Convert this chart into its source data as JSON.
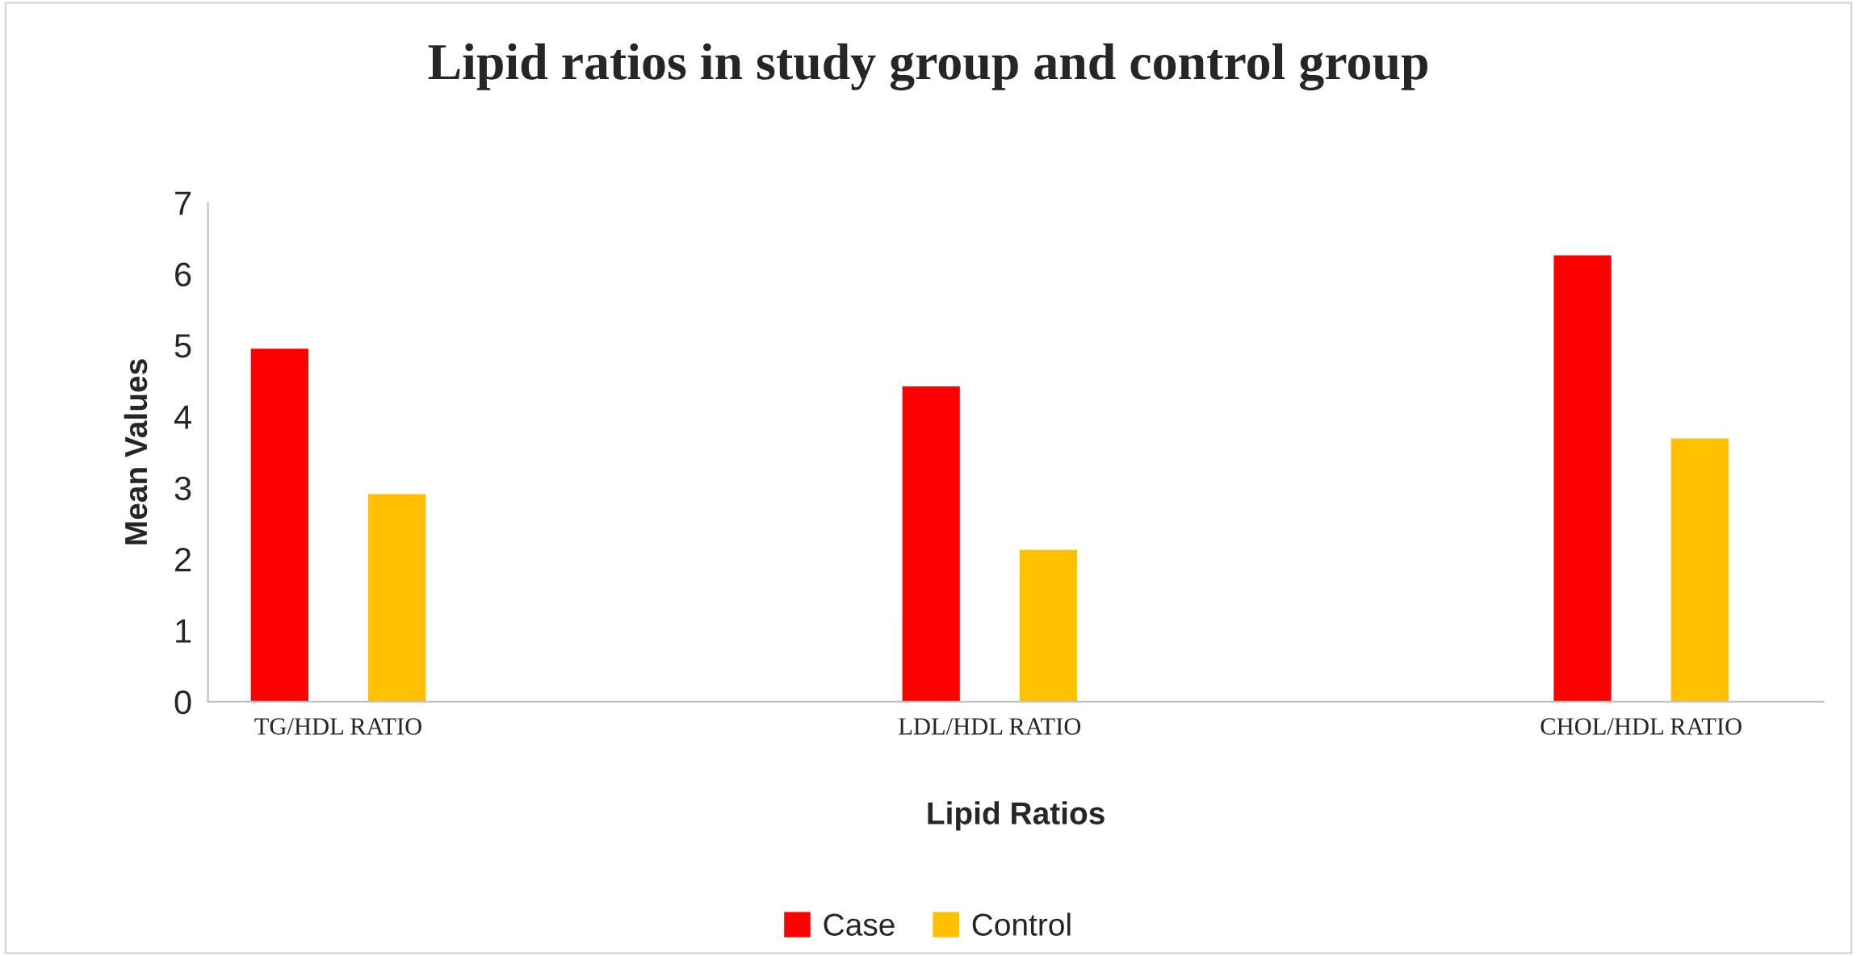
{
  "chart_data": {
    "type": "bar",
    "title": "Lipid ratios in study group and control group",
    "xlabel": "Lipid Ratios",
    "ylabel": "Mean Values",
    "categories": [
      "TG/HDL RATIO",
      "LDL/HDL RATIO",
      "CHOL/HDL RATIO"
    ],
    "series": [
      {
        "name": "Case",
        "color": "#ff0000",
        "values": [
          4.96,
          4.43,
          6.27
        ]
      },
      {
        "name": "Control",
        "color": "#ffc000",
        "values": [
          2.92,
          2.14,
          3.7
        ]
      }
    ],
    "ylim": [
      0,
      7
    ],
    "yticks": [
      0,
      1,
      2,
      3,
      4,
      5,
      6,
      7
    ],
    "grid": false,
    "legend": "bottom"
  }
}
